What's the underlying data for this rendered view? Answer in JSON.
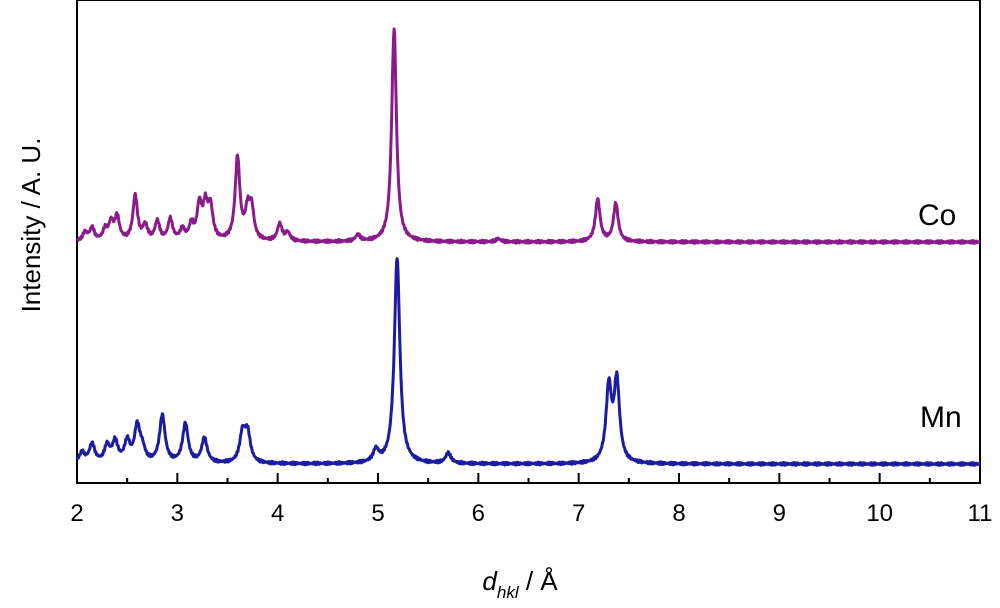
{
  "chart_data": {
    "type": "line",
    "title": "",
    "xlabel": {
      "main": "d",
      "sub": "hkl",
      "rest": " / Å"
    },
    "ylabel": "Intensity / A. U.",
    "xlim": [
      2,
      11
    ],
    "x_ticks": [
      2,
      3,
      4,
      5,
      6,
      7,
      8,
      9,
      10,
      11
    ],
    "x_tick_labels": [
      "2",
      "3",
      "4",
      "5",
      "6",
      "7",
      "8",
      "9",
      "10",
      "11"
    ],
    "y_ticks_visible": false,
    "grid": false,
    "legend": "none",
    "series": [
      {
        "name": "Co",
        "color": "#8B1A8B",
        "baseline": 0,
        "y_range": [
          0,
          1
        ],
        "peaks": [
          [
            2.08,
            0.04
          ],
          [
            2.15,
            0.06
          ],
          [
            2.28,
            0.05
          ],
          [
            2.34,
            0.08
          ],
          [
            2.4,
            0.11
          ],
          [
            2.58,
            0.21
          ],
          [
            2.68,
            0.07
          ],
          [
            2.8,
            0.09
          ],
          [
            2.93,
            0.1
          ],
          [
            3.05,
            0.05
          ],
          [
            3.14,
            0.07
          ],
          [
            3.22,
            0.16
          ],
          [
            3.28,
            0.15
          ],
          [
            3.33,
            0.15
          ],
          [
            3.6,
            0.39
          ],
          [
            3.7,
            0.13
          ],
          [
            3.74,
            0.14
          ],
          [
            4.02,
            0.08
          ],
          [
            4.1,
            0.04
          ],
          [
            4.8,
            0.03
          ],
          [
            5.16,
            1.0
          ],
          [
            6.2,
            0.015
          ],
          [
            7.19,
            0.2
          ],
          [
            7.37,
            0.18
          ]
        ]
      },
      {
        "name": "Mn",
        "color": "#1C1CA0",
        "baseline": 0,
        "y_range": [
          0,
          1
        ],
        "peaks": [
          [
            2.05,
            0.05
          ],
          [
            2.15,
            0.09
          ],
          [
            2.3,
            0.08
          ],
          [
            2.38,
            0.1
          ],
          [
            2.5,
            0.1
          ],
          [
            2.6,
            0.17
          ],
          [
            2.65,
            0.06
          ],
          [
            2.85,
            0.23
          ],
          [
            3.08,
            0.19
          ],
          [
            3.27,
            0.12
          ],
          [
            3.65,
            0.14
          ],
          [
            3.7,
            0.14
          ],
          [
            4.98,
            0.06
          ],
          [
            5.19,
            1.0
          ],
          [
            5.7,
            0.05
          ],
          [
            7.3,
            0.36
          ],
          [
            7.38,
            0.39
          ]
        ]
      }
    ]
  }
}
